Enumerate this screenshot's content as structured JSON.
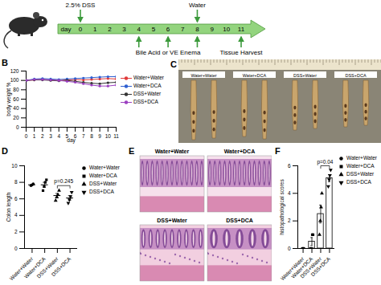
{
  "figure": {
    "A": {
      "axis_label": "day",
      "days": [
        0,
        1,
        2,
        3,
        4,
        5,
        6,
        7,
        8,
        9,
        10,
        11
      ],
      "top_events": [
        {
          "day": 0,
          "label": "2.5% DSS"
        },
        {
          "day": 8,
          "label": "Water"
        }
      ],
      "bottom_events": [
        {
          "days": [
            4,
            6,
            8
          ],
          "label": "Bile Acid or VE Enema"
        },
        {
          "days": [
            11
          ],
          "label": "Tissue Harvest"
        }
      ]
    },
    "C": {
      "panel": "C",
      "labels": [
        "Water+Water",
        "Water+DCA",
        "DSS+Water",
        "DSS+DCA"
      ]
    },
    "E": {
      "panel": "E",
      "labels": [
        "Water+Water",
        "Water+DCA",
        "DSS+Water",
        "DSS+DCA"
      ]
    }
  },
  "chart_data": [
    {
      "panel": "B",
      "type": "line",
      "xlabel": "day",
      "ylabel": "body weight %",
      "x": [
        0,
        1,
        2,
        3,
        4,
        5,
        6,
        7,
        8,
        9,
        10,
        11
      ],
      "xlim": [
        0,
        11
      ],
      "xticks": [
        0,
        1,
        2,
        3,
        4,
        5,
        6,
        7,
        8,
        9,
        10,
        11
      ],
      "ylim": [
        0,
        120
      ],
      "yticks": [
        0,
        20,
        40,
        60,
        80,
        100,
        120
      ],
      "marker": "circle",
      "legend": "right",
      "series": [
        {
          "name": "Water+Water",
          "color": "#e03a3a",
          "values": [
            100,
            101,
            102,
            101,
            100,
            101,
            102,
            101,
            102,
            103,
            104,
            103
          ]
        },
        {
          "name": "Water+DCA",
          "color": "#2f5fd0",
          "values": [
            100,
            103,
            104,
            103,
            102,
            103,
            104,
            105,
            106,
            107,
            108,
            108
          ]
        },
        {
          "name": "DSS+Water",
          "color": "#333333",
          "values": [
            100,
            101,
            101,
            100,
            99,
            100,
            98,
            96,
            94,
            93,
            95,
            96
          ]
        },
        {
          "name": "DSS+DCA",
          "color": "#9b3fc0",
          "values": [
            100,
            102,
            102,
            101,
            100,
            98,
            96,
            93,
            90,
            88,
            88,
            90
          ]
        }
      ]
    },
    {
      "panel": "D",
      "type": "scatter",
      "ylabel": "Colon length",
      "ylim": [
        0,
        10
      ],
      "yticks": [
        0,
        2,
        4,
        6,
        8,
        10
      ],
      "legend": "right",
      "series": [
        {
          "name": "Water+Water",
          "marker": "circle",
          "color": "#000000",
          "values": [
            7.6,
            7.7,
            7.8
          ],
          "mean": 7.7,
          "error": 0.06
        },
        {
          "name": "Water+DCA",
          "marker": "square",
          "color": "#000000",
          "values": [
            7.0,
            7.5,
            8.0,
            8.3
          ],
          "mean": 7.7,
          "error": 0.3
        },
        {
          "name": "DSS+Water",
          "marker": "triangle-up",
          "color": "#000000",
          "values": [
            5.8,
            6.2,
            6.5,
            7.0
          ],
          "mean": 6.4,
          "error": 0.25
        },
        {
          "name": "DSS+DCA",
          "marker": "triangle-down",
          "color": "#000000",
          "values": [
            5.5,
            5.9,
            6.3,
            6.8
          ],
          "mean": 6.1,
          "error": 0.28
        }
      ],
      "annotations": [
        {
          "text": "p=0.245",
          "between": [
            "DSS+Water",
            "DSS+DCA"
          ]
        }
      ]
    },
    {
      "panel": "F",
      "type": "bar",
      "ylabel": "histopathological scores",
      "ylim": [
        0,
        6
      ],
      "yticks": [
        0,
        2,
        4,
        6
      ],
      "legend": "right",
      "series": [
        {
          "name": "Water+Water",
          "marker": "circle",
          "color": "#000000",
          "values": [
            0,
            0,
            0
          ],
          "mean": 0,
          "error": 0
        },
        {
          "name": "Water+DCA",
          "marker": "square",
          "color": "#000000",
          "values": [
            0,
            0,
            1,
            1
          ],
          "mean": 0.5,
          "error": 0.29
        },
        {
          "name": "DSS+Water",
          "marker": "triangle-up",
          "color": "#000000",
          "values": [
            1,
            2,
            3,
            4
          ],
          "mean": 2.5,
          "error": 0.65
        },
        {
          "name": "DSS+DCA",
          "marker": "triangle-down",
          "color": "#000000",
          "values": [
            4.5,
            5,
            5.3,
            5.7
          ],
          "mean": 5.1,
          "error": 0.26
        }
      ],
      "annotations": [
        {
          "text": "p=0.04",
          "between": [
            "DSS+Water",
            "DSS+DCA"
          ]
        }
      ]
    }
  ]
}
